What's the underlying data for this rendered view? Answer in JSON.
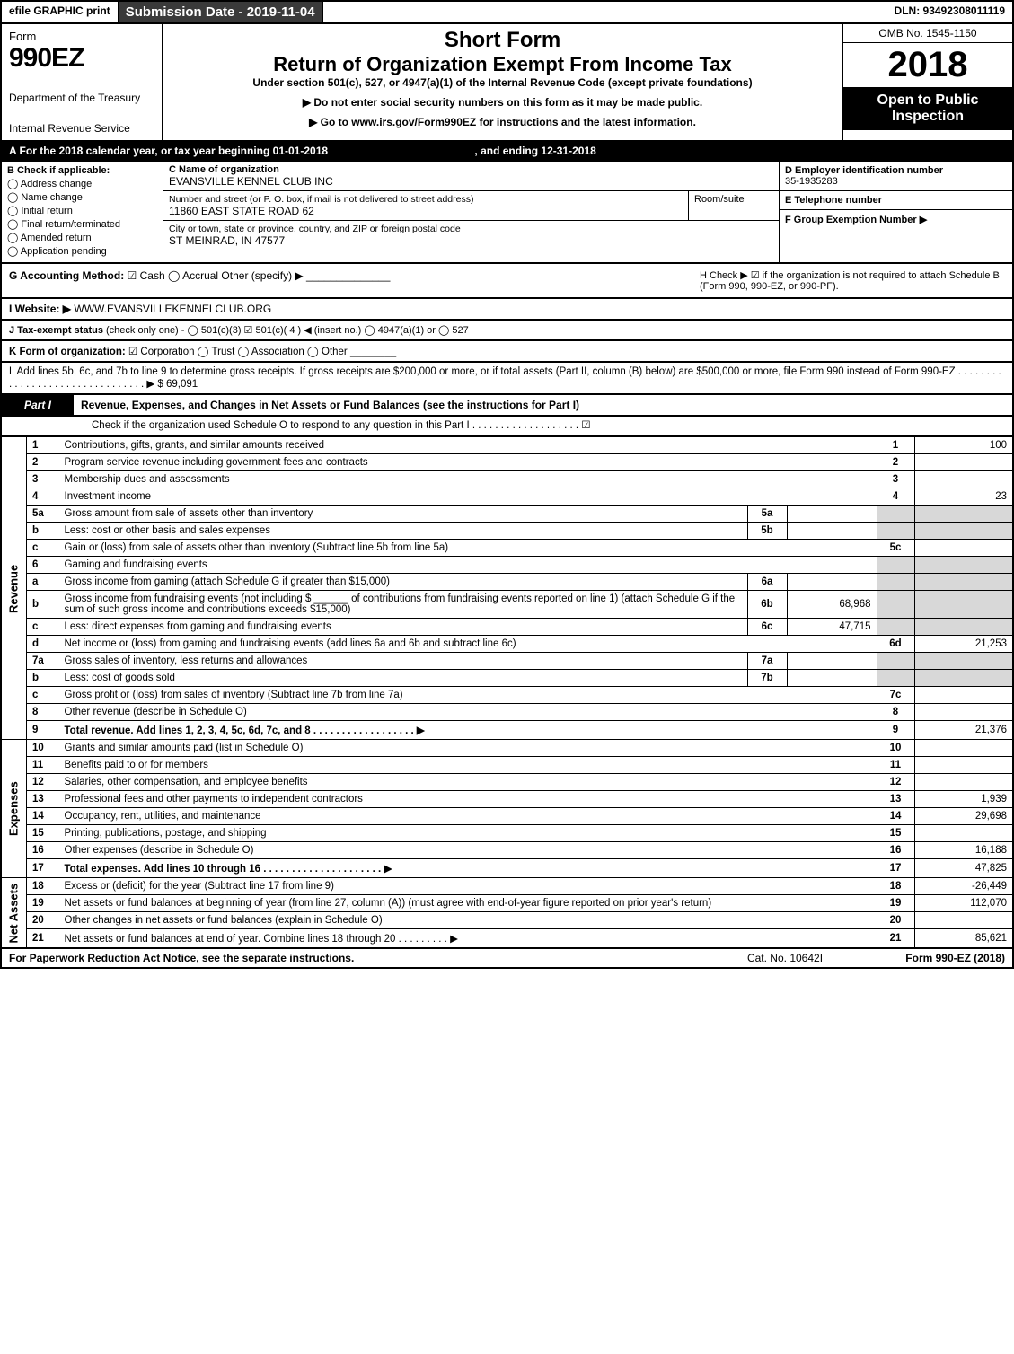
{
  "topbar": {
    "efile": "efile GRAPHIC print",
    "submission": "Submission Date - 2019-11-04",
    "dln": "DLN: 93492308011119"
  },
  "header": {
    "form_word": "Form",
    "form_code": "990EZ",
    "dept1": "Department of the Treasury",
    "dept2": "Internal Revenue Service",
    "short_form": "Short Form",
    "title": "Return of Organization Exempt From Income Tax",
    "subtitle": "Under section 501(c), 527, or 4947(a)(1) of the Internal Revenue Code (except private foundations)",
    "note1": "▶ Do not enter social security numbers on this form as it may be made public.",
    "note2_pre": "▶ Go to ",
    "note2_link": "www.irs.gov/Form990EZ",
    "note2_post": " for instructions and the latest information.",
    "omb": "OMB No. 1545-1150",
    "year": "2018",
    "open_public": "Open to Public Inspection"
  },
  "period": {
    "text_a": "A  For the 2018 calendar year, or tax year beginning 01-01-2018",
    "text_b": ", and ending 12-31-2018"
  },
  "box_b": {
    "hdr": "B  Check if applicable:",
    "items": [
      "Address change",
      "Name change",
      "Initial return",
      "Final return/terminated",
      "Amended return",
      "Application pending"
    ]
  },
  "box_c": {
    "lbl": "C Name of organization",
    "name": "EVANSVILLE KENNEL CLUB INC",
    "addr_lbl": "Number and street (or P. O. box, if mail is not delivered to street address)",
    "addr": "11860 EAST STATE ROAD 62",
    "room_lbl": "Room/suite",
    "city_lbl": "City or town, state or province, country, and ZIP or foreign postal code",
    "city": "ST MEINRAD, IN  47577"
  },
  "box_d": {
    "lbl": "D Employer identification number",
    "val": "35-1935283"
  },
  "box_e": {
    "lbl": "E Telephone number",
    "val": ""
  },
  "box_f": {
    "lbl": "F Group Exemption Number  ▶",
    "val": ""
  },
  "box_g": {
    "lbl": "G Accounting Method:",
    "opts": "☑ Cash  ◯ Accrual  Other (specify) ▶",
    "line": "______________"
  },
  "box_h": {
    "text": "H  Check ▶ ☑ if the organization is not required to attach Schedule B (Form 990, 990-EZ, or 990-PF)."
  },
  "box_i": {
    "lbl": "I Website: ▶",
    "val": "WWW.EVANSVILLEKENNELCLUB.ORG"
  },
  "box_j": {
    "lbl": "J Tax-exempt status",
    "rest": " (check only one) - ◯ 501(c)(3) ☑ 501(c)( 4 ) ◀ (insert no.) ◯ 4947(a)(1) or ◯ 527"
  },
  "box_k": {
    "lbl": "K Form of organization:",
    "rest": " ☑ Corporation  ◯ Trust  ◯ Association  ◯ Other ________"
  },
  "box_l": {
    "text": "L Add lines 5b, 6c, and 7b to line 9 to determine gross receipts. If gross receipts are $200,000 or more, or if total assets (Part II, column (B) below) are $500,000 or more, file Form 990 instead of Form 990-EZ . . . . . . . . . . . . . . . . . . . . . . . . . . . . . . . . ▶ $ 69,091"
  },
  "part1": {
    "tab": "Part I",
    "title": "Revenue, Expenses, and Changes in Net Assets or Fund Balances (see the instructions for Part I)",
    "sub": "Check if the organization used Schedule O to respond to any question in this Part I . . . . . . . . . . . . . . . . . . . ☑"
  },
  "sections": {
    "revenue": "Revenue",
    "expenses": "Expenses",
    "netassets": "Net Assets"
  },
  "rows": [
    {
      "sec": "rev",
      "n": "1",
      "d": "Contributions, gifts, grants, and similar amounts received",
      "box": "1",
      "amt": "100"
    },
    {
      "sec": "rev",
      "n": "2",
      "d": "Program service revenue including government fees and contracts",
      "box": "2",
      "amt": ""
    },
    {
      "sec": "rev",
      "n": "3",
      "d": "Membership dues and assessments",
      "box": "3",
      "amt": ""
    },
    {
      "sec": "rev",
      "n": "4",
      "d": "Investment income",
      "box": "4",
      "amt": "23"
    },
    {
      "sec": "rev",
      "n": "5a",
      "d": "Gross amount from sale of assets other than inventory",
      "mid": "5a",
      "midamt": "",
      "shade": true
    },
    {
      "sec": "rev",
      "n": "b",
      "d": "Less: cost or other basis and sales expenses",
      "mid": "5b",
      "midamt": "",
      "shade": true
    },
    {
      "sec": "rev",
      "n": "c",
      "d": "Gain or (loss) from sale of assets other than inventory (Subtract line 5b from line 5a)",
      "box": "5c",
      "amt": ""
    },
    {
      "sec": "rev",
      "n": "6",
      "d": "Gaming and fundraising events",
      "shade": true,
      "nobox": true
    },
    {
      "sec": "rev",
      "n": "a",
      "d": "Gross income from gaming (attach Schedule G if greater than $15,000)",
      "mid": "6a",
      "midamt": "",
      "shade": true
    },
    {
      "sec": "rev",
      "n": "b",
      "d": "Gross income from fundraising events (not including $ ______ of contributions from fundraising events reported on line 1) (attach Schedule G if the sum of such gross income and contributions exceeds $15,000)",
      "mid": "6b",
      "midamt": "68,968",
      "shade": true
    },
    {
      "sec": "rev",
      "n": "c",
      "d": "Less: direct expenses from gaming and fundraising events",
      "mid": "6c",
      "midamt": "47,715",
      "shade": true
    },
    {
      "sec": "rev",
      "n": "d",
      "d": "Net income or (loss) from gaming and fundraising events (add lines 6a and 6b and subtract line 6c)",
      "box": "6d",
      "amt": "21,253"
    },
    {
      "sec": "rev",
      "n": "7a",
      "d": "Gross sales of inventory, less returns and allowances",
      "mid": "7a",
      "midamt": "",
      "shade": true
    },
    {
      "sec": "rev",
      "n": "b",
      "d": "Less: cost of goods sold",
      "mid": "7b",
      "midamt": "",
      "shade": true
    },
    {
      "sec": "rev",
      "n": "c",
      "d": "Gross profit or (loss) from sales of inventory (Subtract line 7b from line 7a)",
      "box": "7c",
      "amt": ""
    },
    {
      "sec": "rev",
      "n": "8",
      "d": "Other revenue (describe in Schedule O)",
      "box": "8",
      "amt": ""
    },
    {
      "sec": "rev",
      "n": "9",
      "d": "Total revenue. Add lines 1, 2, 3, 4, 5c, 6d, 7c, and 8  . . . . . . . . . . . . . . . . . . ▶",
      "box": "9",
      "amt": "21,376",
      "bold": true
    },
    {
      "sec": "exp",
      "n": "10",
      "d": "Grants and similar amounts paid (list in Schedule O)",
      "box": "10",
      "amt": ""
    },
    {
      "sec": "exp",
      "n": "11",
      "d": "Benefits paid to or for members",
      "box": "11",
      "amt": ""
    },
    {
      "sec": "exp",
      "n": "12",
      "d": "Salaries, other compensation, and employee benefits",
      "box": "12",
      "amt": ""
    },
    {
      "sec": "exp",
      "n": "13",
      "d": "Professional fees and other payments to independent contractors",
      "box": "13",
      "amt": "1,939"
    },
    {
      "sec": "exp",
      "n": "14",
      "d": "Occupancy, rent, utilities, and maintenance",
      "box": "14",
      "amt": "29,698"
    },
    {
      "sec": "exp",
      "n": "15",
      "d": "Printing, publications, postage, and shipping",
      "box": "15",
      "amt": ""
    },
    {
      "sec": "exp",
      "n": "16",
      "d": "Other expenses (describe in Schedule O)",
      "box": "16",
      "amt": "16,188"
    },
    {
      "sec": "exp",
      "n": "17",
      "d": "Total expenses. Add lines 10 through 16  . . . . . . . . . . . . . . . . . . . . . ▶",
      "box": "17",
      "amt": "47,825",
      "bold": true
    },
    {
      "sec": "net",
      "n": "18",
      "d": "Excess or (deficit) for the year (Subtract line 17 from line 9)",
      "box": "18",
      "amt": "-26,449"
    },
    {
      "sec": "net",
      "n": "19",
      "d": "Net assets or fund balances at beginning of year (from line 27, column (A)) (must agree with end-of-year figure reported on prior year's return)",
      "box": "19",
      "amt": "112,070"
    },
    {
      "sec": "net",
      "n": "20",
      "d": "Other changes in net assets or fund balances (explain in Schedule O)",
      "box": "20",
      "amt": ""
    },
    {
      "sec": "net",
      "n": "21",
      "d": "Net assets or fund balances at end of year. Combine lines 18 through 20  . . . . . . . . . ▶",
      "box": "21",
      "amt": "85,621"
    }
  ],
  "footer": {
    "left": "For Paperwork Reduction Act Notice, see the separate instructions.",
    "mid": "Cat. No. 10642I",
    "right": "Form 990-EZ (2018)"
  }
}
